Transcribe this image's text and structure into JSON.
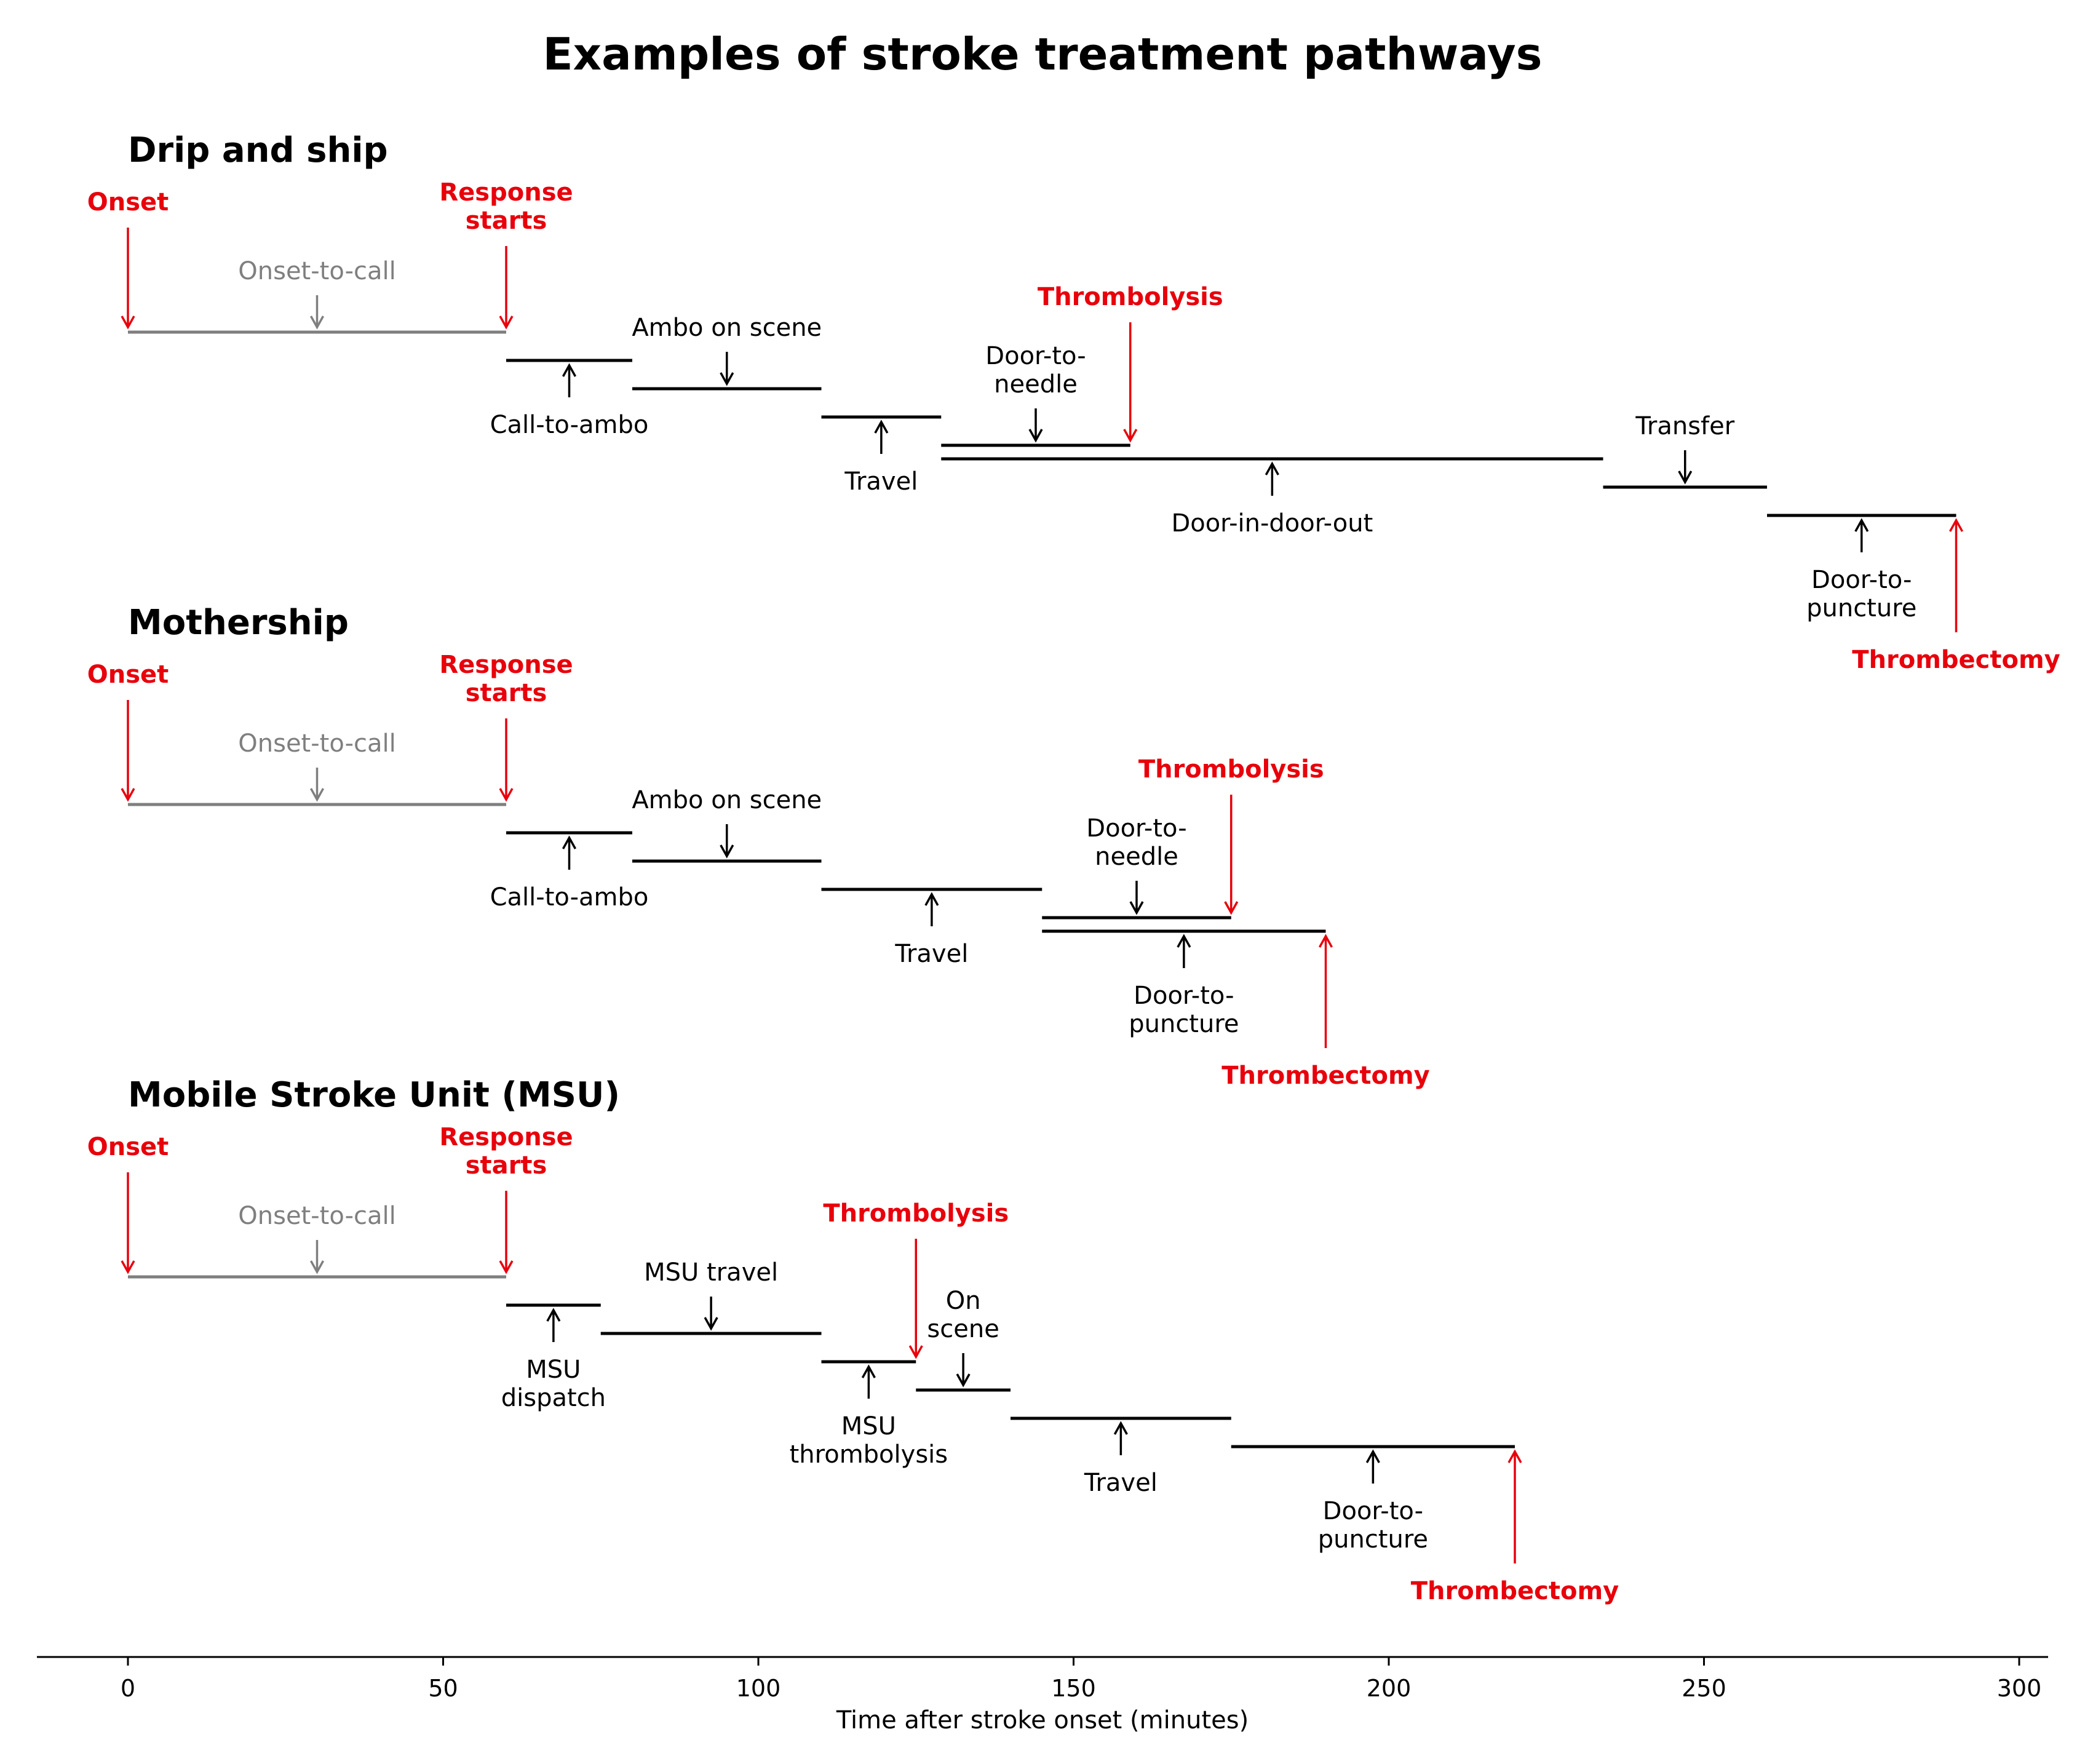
{
  "title": "Examples of stroke treatment pathways",
  "colors": {
    "event": "#e8000b",
    "precall": "#7f7f7f",
    "stage": "#000000"
  },
  "x_axis": {
    "label": "Time after stroke onset (minutes)",
    "ticks": [
      0,
      50,
      100,
      150,
      200,
      250,
      300
    ],
    "range": [
      -15,
      305
    ]
  },
  "panels": [
    {
      "title": "Drip and ship",
      "stages": [
        {
          "label": [
            "Onset-to-call"
          ],
          "start": 0,
          "end": 60,
          "color": "precall",
          "label_side": "above"
        },
        {
          "label": [
            "Call-to-ambo"
          ],
          "start": 60,
          "end": 80,
          "color": "stage",
          "label_side": "below"
        },
        {
          "label": [
            "Ambo on scene"
          ],
          "start": 80,
          "end": 110,
          "color": "stage",
          "label_side": "above"
        },
        {
          "label": [
            "Travel"
          ],
          "start": 110,
          "end": 129,
          "color": "stage",
          "label_side": "below"
        },
        {
          "label": [
            "Door-to-",
            "needle"
          ],
          "start": 129,
          "end": 159,
          "color": "stage",
          "label_side": "above"
        },
        {
          "label": [
            "Door-in-door-out"
          ],
          "start": 129,
          "end": 234,
          "color": "stage",
          "label_side": "below"
        },
        {
          "label": [
            "Transfer"
          ],
          "start": 234,
          "end": 260,
          "color": "stage",
          "label_side": "above"
        },
        {
          "label": [
            "Door-to-",
            "puncture"
          ],
          "start": 260,
          "end": 290,
          "color": "stage",
          "label_side": "below"
        }
      ],
      "events": [
        {
          "label": [
            "Onset"
          ],
          "time": 0,
          "stage": 0,
          "side": "above"
        },
        {
          "label": [
            "Response",
            "starts"
          ],
          "time": 60,
          "stage": 0,
          "side": "above"
        },
        {
          "label": [
            "Thrombolysis"
          ],
          "time": 159,
          "stage": 4,
          "side": "above"
        },
        {
          "label": [
            "Thrombectomy"
          ],
          "time": 290,
          "stage": 7,
          "side": "below"
        }
      ]
    },
    {
      "title": "Mothership",
      "stages": [
        {
          "label": [
            "Onset-to-call"
          ],
          "start": 0,
          "end": 60,
          "color": "precall",
          "label_side": "above"
        },
        {
          "label": [
            "Call-to-ambo"
          ],
          "start": 60,
          "end": 80,
          "color": "stage",
          "label_side": "below"
        },
        {
          "label": [
            "Ambo on scene"
          ],
          "start": 80,
          "end": 110,
          "color": "stage",
          "label_side": "above"
        },
        {
          "label": [
            "Travel"
          ],
          "start": 110,
          "end": 145,
          "color": "stage",
          "label_side": "below"
        },
        {
          "label": [
            "Door-to-",
            "needle"
          ],
          "start": 145,
          "end": 175,
          "color": "stage",
          "label_side": "above"
        },
        {
          "label": [
            "Door-to-",
            "puncture"
          ],
          "start": 145,
          "end": 190,
          "color": "stage",
          "label_side": "below"
        }
      ],
      "events": [
        {
          "label": [
            "Onset"
          ],
          "time": 0,
          "stage": 0,
          "side": "above"
        },
        {
          "label": [
            "Response",
            "starts"
          ],
          "time": 60,
          "stage": 0,
          "side": "above"
        },
        {
          "label": [
            "Thrombolysis"
          ],
          "time": 175,
          "stage": 4,
          "side": "above"
        },
        {
          "label": [
            "Thrombectomy"
          ],
          "time": 190,
          "stage": 5,
          "side": "below"
        }
      ]
    },
    {
      "title": "Mobile Stroke Unit (MSU)",
      "stages": [
        {
          "label": [
            "Onset-to-call"
          ],
          "start": 0,
          "end": 60,
          "color": "precall",
          "label_side": "above"
        },
        {
          "label": [
            "MSU",
            "dispatch"
          ],
          "start": 60,
          "end": 75,
          "color": "stage",
          "label_side": "below"
        },
        {
          "label": [
            "MSU travel"
          ],
          "start": 75,
          "end": 110,
          "color": "stage",
          "label_side": "above"
        },
        {
          "label": [
            "MSU",
            "thrombolysis"
          ],
          "start": 110,
          "end": 125,
          "color": "stage",
          "label_side": "below"
        },
        {
          "label": [
            "On",
            "scene"
          ],
          "start": 125,
          "end": 140,
          "color": "stage",
          "label_side": "above"
        },
        {
          "label": [
            "Travel"
          ],
          "start": 140,
          "end": 175,
          "color": "stage",
          "label_side": "below"
        },
        {
          "label": [
            "Door-to-",
            "puncture"
          ],
          "start": 175,
          "end": 220,
          "color": "stage",
          "label_side": "below"
        }
      ],
      "events": [
        {
          "label": [
            "Onset"
          ],
          "time": 0,
          "stage": 0,
          "side": "above"
        },
        {
          "label": [
            "Response",
            "starts"
          ],
          "time": 60,
          "stage": 0,
          "side": "above"
        },
        {
          "label": [
            "Thrombolysis"
          ],
          "time": 125,
          "stage": 3,
          "side": "above"
        },
        {
          "label": [
            "Thrombectomy"
          ],
          "time": 220,
          "stage": 6,
          "side": "below"
        }
      ]
    }
  ]
}
